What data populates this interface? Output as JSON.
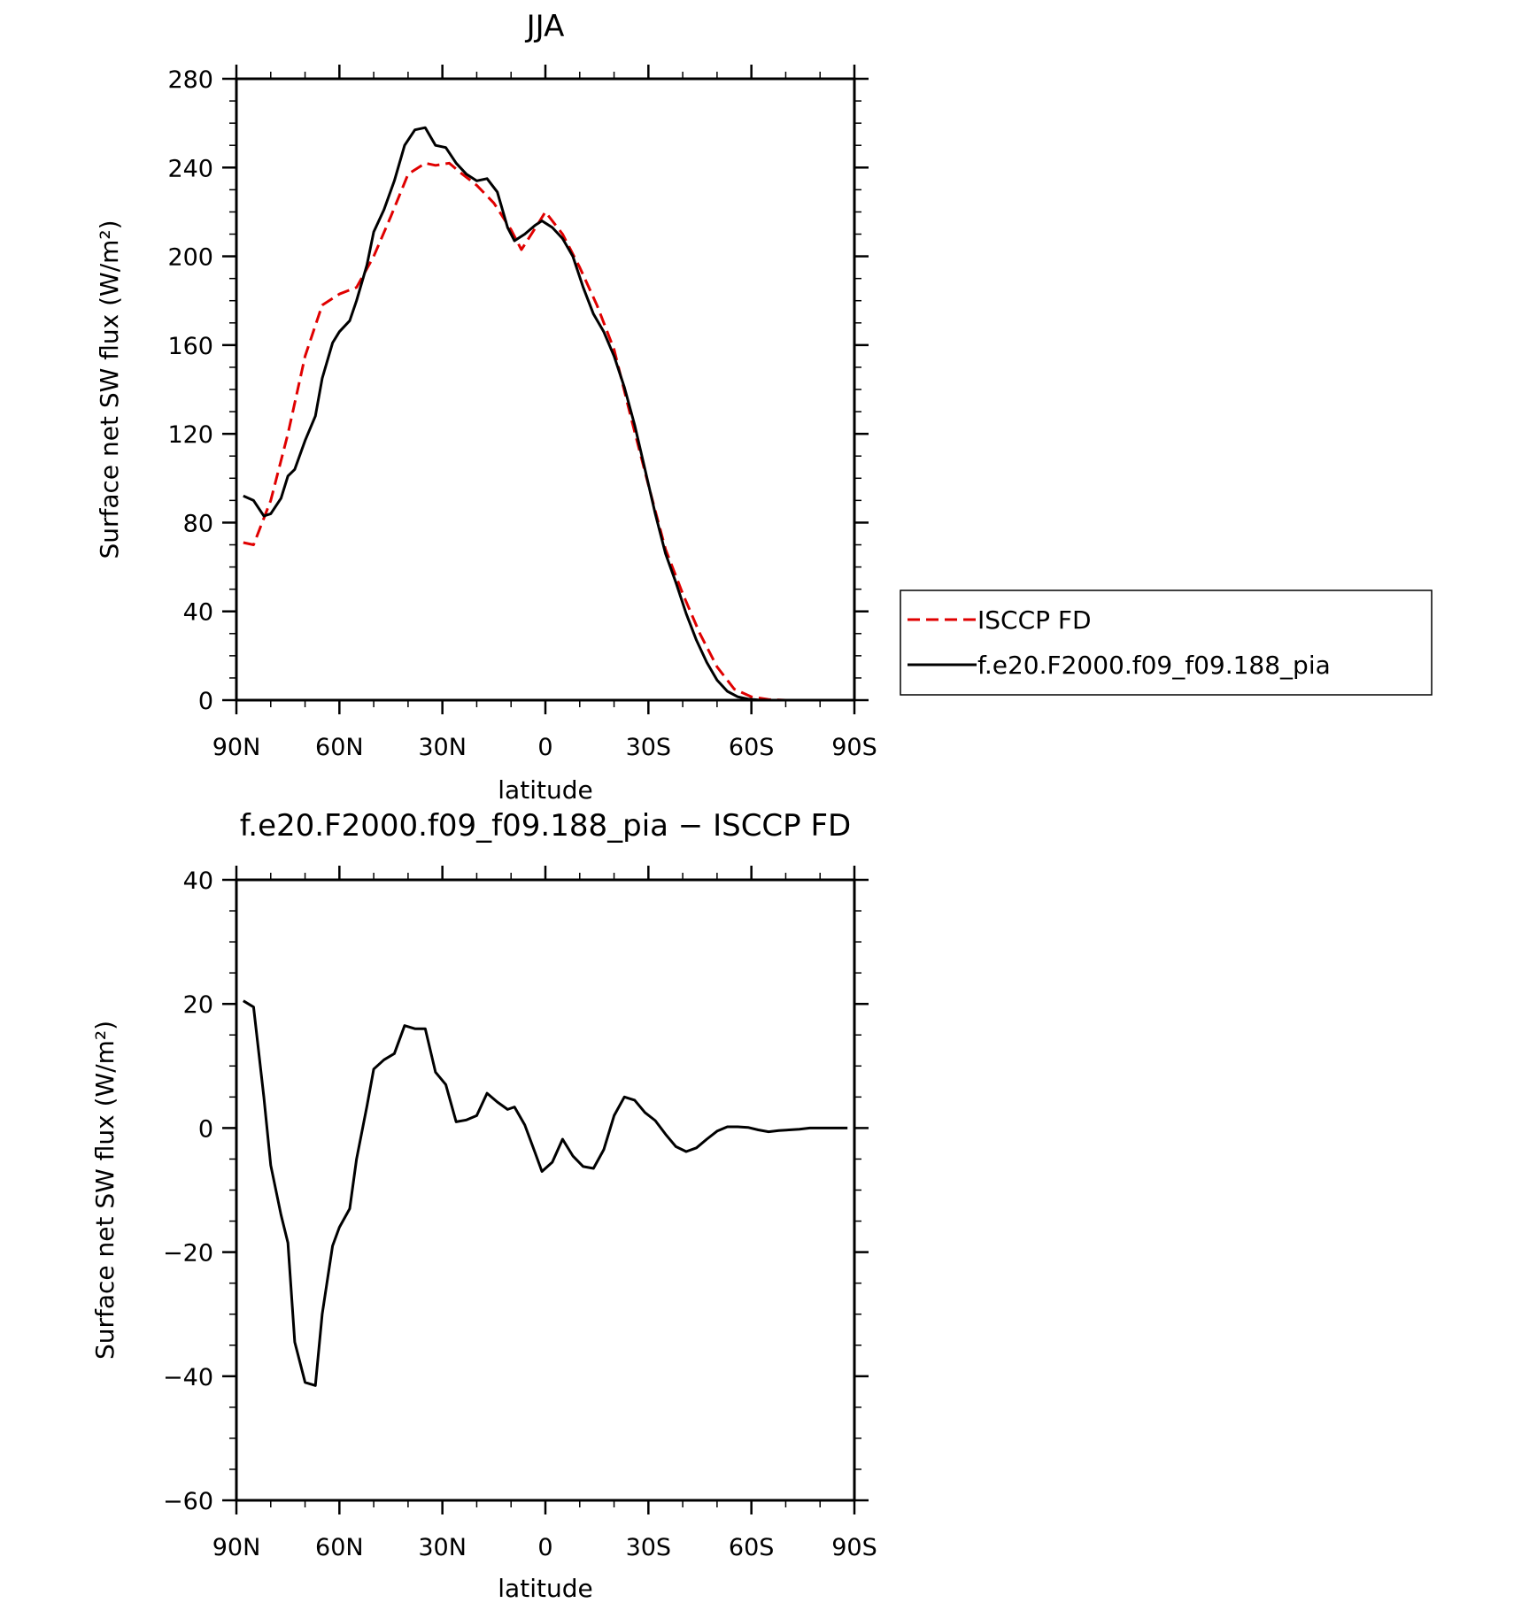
{
  "charts": [
    {
      "type": "line",
      "title": "JJA",
      "xlabel": "latitude",
      "ylabel": "Surface net SW flux (W/m²)",
      "xlim": [
        90,
        -90
      ],
      "ylim": [
        0,
        280
      ],
      "xticks": [
        90,
        60,
        30,
        0,
        -30,
        -60,
        -90
      ],
      "xtick_labels": [
        "90N",
        "60N",
        "30N",
        "0",
        "30S",
        "60S",
        "90S"
      ],
      "yticks": [
        0,
        40,
        80,
        120,
        160,
        200,
        240,
        280
      ],
      "ytick_labels": [
        "0",
        "40",
        "80",
        "120",
        "160",
        "200",
        "240",
        "280"
      ],
      "legend_position": "right",
      "series": [
        {
          "name": "ISCCP FD",
          "color": "#e00000",
          "dash": "dashed",
          "x": [
            88,
            85,
            80,
            75,
            70,
            65,
            60,
            55,
            50,
            45,
            40,
            35,
            32,
            28,
            25,
            20,
            15,
            10,
            7,
            2,
            0,
            -5,
            -10,
            -15,
            -20,
            -25,
            -30,
            -35,
            -40,
            -45,
            -50,
            -55,
            -60,
            -65,
            -70,
            -75,
            -80,
            -85,
            -88
          ],
          "y": [
            71,
            70,
            90,
            120,
            155,
            178,
            183,
            186,
            200,
            218,
            237,
            242,
            241,
            242,
            238,
            232,
            224,
            212,
            203,
            215,
            220,
            210,
            195,
            178,
            158,
            127,
            97,
            68,
            48,
            30,
            15,
            5,
            1.5,
            0.3,
            0,
            0,
            0,
            0,
            0
          ]
        },
        {
          "name": "f.e20.F2000.f09_f09.188_pia",
          "color": "#000000",
          "dash": "solid",
          "x": [
            88,
            85,
            82,
            80,
            77,
            75,
            73,
            70,
            67,
            65,
            62,
            60,
            57,
            55,
            52,
            50,
            47,
            44,
            41,
            38,
            35,
            32,
            29,
            26,
            23,
            20,
            17,
            14,
            11,
            9,
            6,
            3,
            1,
            -2,
            -5,
            -8,
            -11,
            -14,
            -17,
            -20,
            -23,
            -26,
            -29,
            -32,
            -35,
            -38,
            -41,
            -44,
            -47,
            -50,
            -53,
            -56,
            -59,
            -62,
            -65,
            -68,
            -71,
            -74,
            -77,
            -80,
            -83,
            -85,
            -88
          ],
          "y": [
            92,
            90,
            83,
            84,
            91,
            101,
            104,
            117,
            128,
            145,
            161,
            166,
            171,
            180,
            196,
            211,
            221,
            234,
            250,
            257,
            258,
            250,
            249,
            242,
            237,
            234,
            235,
            229,
            213,
            207,
            210,
            214,
            216,
            213,
            208,
            200,
            186,
            174,
            166,
            155,
            141,
            124,
            104,
            84,
            66,
            53,
            39,
            27,
            17,
            9,
            4,
            1.5,
            0.5,
            0.1,
            0,
            0,
            0,
            0,
            0,
            0,
            0,
            0,
            0
          ]
        }
      ]
    },
    {
      "type": "line",
      "title": "f.e20.F2000.f09_f09.188_pia − ISCCP FD",
      "xlabel": "latitude",
      "ylabel": "Surface net SW flux (W/m²)",
      "xlim": [
        90,
        -90
      ],
      "ylim": [
        -60,
        40
      ],
      "xticks": [
        90,
        60,
        30,
        0,
        -30,
        -60,
        -90
      ],
      "xtick_labels": [
        "90N",
        "60N",
        "30N",
        "0",
        "30S",
        "60S",
        "90S"
      ],
      "yticks": [
        -60,
        -40,
        -20,
        0,
        20,
        40
      ],
      "ytick_labels": [
        "−60",
        "−40",
        "−20",
        "0",
        "20",
        "40"
      ],
      "series": [
        {
          "color": "#000000",
          "dash": "solid",
          "x": [
            88,
            85,
            82,
            80,
            77,
            75,
            73,
            70,
            67,
            65,
            62,
            60,
            57,
            55,
            52,
            50,
            47,
            44,
            41,
            38,
            35,
            32,
            29,
            26,
            23,
            20,
            17,
            14,
            11,
            9,
            6,
            3,
            1,
            -2,
            -5,
            -8,
            -11,
            -14,
            -17,
            -20,
            -23,
            -26,
            -29,
            -32,
            -35,
            -38,
            -41,
            -44,
            -47,
            -50,
            -53,
            -56,
            -59,
            -62,
            -65,
            -68,
            -71,
            -74,
            -77,
            -80,
            -83,
            -85,
            -88
          ],
          "y": [
            20.5,
            19.5,
            5,
            -6,
            -14,
            -18.5,
            -34.5,
            -41,
            -41.5,
            -30,
            -19,
            -16,
            -13,
            -5,
            3.5,
            9.5,
            11,
            12,
            16.5,
            16,
            16,
            9,
            7,
            1,
            1.3,
            2,
            5.6,
            4.2,
            3,
            3.4,
            0.5,
            -4,
            -7,
            -5.5,
            -1.8,
            -4.5,
            -6.2,
            -6.5,
            -3.5,
            2,
            5,
            4.5,
            2.5,
            1.2,
            -1,
            -3,
            -3.8,
            -3.2,
            -1.8,
            -0.5,
            0.2,
            0.2,
            0.1,
            -0.3,
            -0.6,
            -0.4,
            -0.3,
            -0.2,
            0,
            0,
            0,
            0,
            0
          ]
        }
      ]
    }
  ]
}
